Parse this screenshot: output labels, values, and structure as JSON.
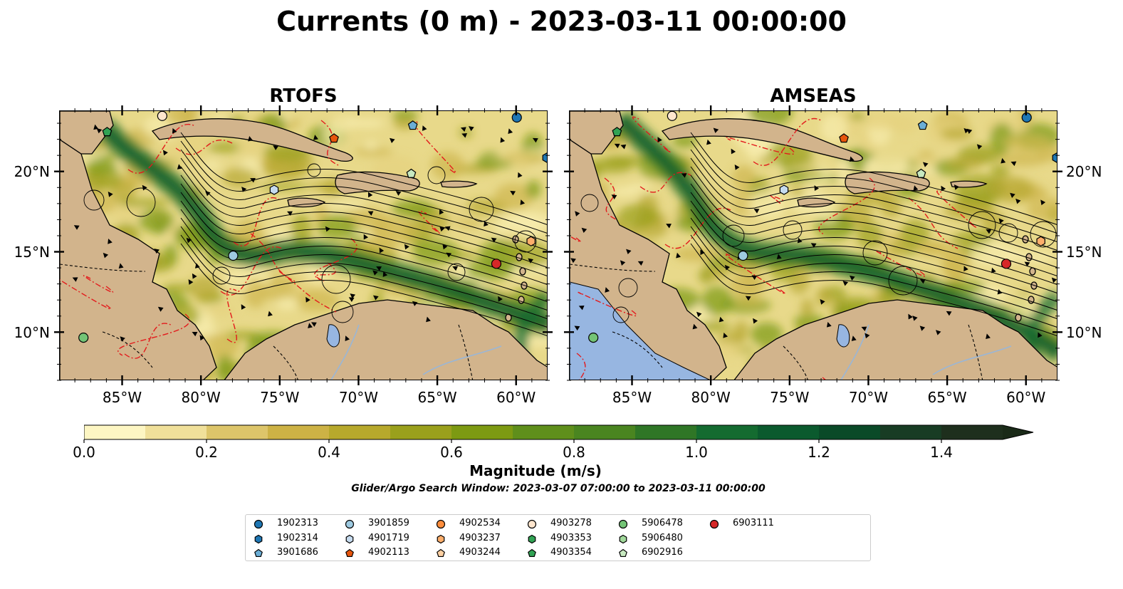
{
  "title": "Currents (0 m) - 2023-03-11 00:00:00",
  "panels": [
    {
      "title": "RTOFS"
    },
    {
      "title": "AMSEAS"
    }
  ],
  "x_ticks": [
    "85°W",
    "80°W",
    "75°W",
    "70°W",
    "65°W",
    "60°W"
  ],
  "x_tick_lons": [
    -85,
    -80,
    -75,
    -70,
    -65,
    -60
  ],
  "y_ticks": [
    "20°N",
    "15°N",
    "10°N"
  ],
  "y_tick_lats": [
    20,
    15,
    10
  ],
  "extent": {
    "lon_min": -89,
    "lon_max": -58,
    "lat_min": 7,
    "lat_max": 23.8
  },
  "colorbar": {
    "label": "Magnitude (m/s)",
    "ticks": [
      "0.0",
      "0.2",
      "0.4",
      "0.6",
      "0.8",
      "1.0",
      "1.2",
      "1.4"
    ],
    "tick_values": [
      0.0,
      0.2,
      0.4,
      0.6,
      0.8,
      1.0,
      1.2,
      1.4
    ],
    "min": 0.0,
    "max": 1.5,
    "extend": "max",
    "colors": [
      "#fdf6c3",
      "#f0e09a",
      "#ddc56a",
      "#cdb245",
      "#b7a92c",
      "#9aa01c",
      "#7d9a12",
      "#5f8f1b",
      "#4a8520",
      "#2f7626",
      "#146b30",
      "#0b5a2e",
      "#0a4a28",
      "#183c24",
      "#1e2f1d"
    ]
  },
  "search_window": "Glider/Argo Search Window: 2023-03-07 07:00:00 to 2023-03-11 00:00:00",
  "land_color": "#d2b48c",
  "water_body_color": "#97b6e1",
  "legend": [
    {
      "label": "1902313",
      "marker": "circle",
      "color": "#1f77b4"
    },
    {
      "label": "1902314",
      "marker": "hexagon",
      "color": "#1f77b4"
    },
    {
      "label": "3901686",
      "marker": "pentagon",
      "color": "#6baed6"
    },
    {
      "label": "3901859",
      "marker": "circle",
      "color": "#9ecae1"
    },
    {
      "label": "4901719",
      "marker": "hexagon",
      "color": "#c6dbef"
    },
    {
      "label": "4902113",
      "marker": "pentagon",
      "color": "#e6550d"
    },
    {
      "label": "4902534",
      "marker": "circle",
      "color": "#fd8d3c"
    },
    {
      "label": "4903237",
      "marker": "hexagon",
      "color": "#fdae6b"
    },
    {
      "label": "4903244",
      "marker": "pentagon",
      "color": "#fdd0a2"
    },
    {
      "label": "4903278",
      "marker": "circle",
      "color": "#fee6ce"
    },
    {
      "label": "4903353",
      "marker": "hexagon",
      "color": "#31a354"
    },
    {
      "label": "4903354",
      "marker": "pentagon",
      "color": "#31a354"
    },
    {
      "label": "5906478",
      "marker": "circle",
      "color": "#74c476"
    },
    {
      "label": "5906480",
      "marker": "hexagon",
      "color": "#a1d99b"
    },
    {
      "label": "6902916",
      "marker": "pentagon",
      "color": "#c7e9c0"
    },
    {
      "label": "6903111",
      "marker": "circle",
      "color": "#d62728"
    }
  ],
  "floats": [
    {
      "id": "4903278",
      "lon": -82.5,
      "lat": 23.5,
      "marker": "circle",
      "color": "#fee6ce"
    },
    {
      "id": "4903354",
      "lon": -86.0,
      "lat": 22.5,
      "marker": "pentagon",
      "color": "#31a354"
    },
    {
      "id": "4902113",
      "lon": -71.6,
      "lat": 22.1,
      "marker": "pentagon",
      "color": "#e6550d"
    },
    {
      "id": "3901686",
      "lon": -66.6,
      "lat": 22.9,
      "marker": "pentagon",
      "color": "#6baed6"
    },
    {
      "id": "1902313",
      "lon": -60.0,
      "lat": 23.4,
      "marker": "circle",
      "color": "#1f77b4"
    },
    {
      "id": "1902314",
      "lon": -58.1,
      "lat": 20.9,
      "marker": "hexagon",
      "color": "#1f77b4"
    },
    {
      "id": "6902916",
      "lon": -66.7,
      "lat": 19.9,
      "marker": "pentagon",
      "color": "#c7e9c0"
    },
    {
      "id": "4901719",
      "lon": -75.4,
      "lat": 18.9,
      "marker": "hexagon",
      "color": "#c6dbef"
    },
    {
      "id": "3901859",
      "lon": -78.0,
      "lat": 14.8,
      "marker": "circle",
      "color": "#9ecae1"
    },
    {
      "id": "6903111",
      "lon": -61.3,
      "lat": 14.3,
      "marker": "circle",
      "color": "#d62728"
    },
    {
      "id": "4903237",
      "lon": -59.1,
      "lat": 15.7,
      "marker": "hexagon",
      "color": "#fdae6b"
    },
    {
      "id": "5906478",
      "lon": -87.5,
      "lat": 9.7,
      "marker": "circle",
      "color": "#74c476"
    }
  ]
}
